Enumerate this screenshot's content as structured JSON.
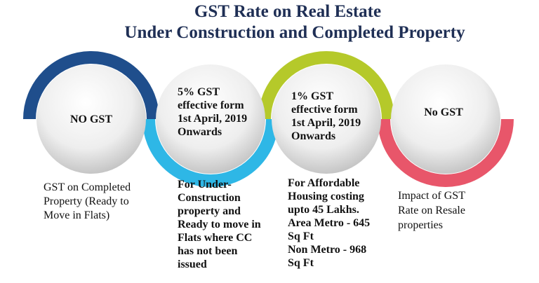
{
  "header": {
    "title": [
      "GST Rate on Real Estate",
      "Under Construction and Completed Property"
    ]
  },
  "items": [
    {
      "circle": [
        "NO GST"
      ],
      "description": [
        "GST on Completed",
        "Property (Ready to",
        "Move in Flats)"
      ]
    },
    {
      "circle": [
        "5% GST",
        "effective form",
        "1st April, 2019",
        "Onwards"
      ],
      "description": [
        "For Under-",
        "Construction",
        "property and",
        "Ready to move in",
        "Flats where CC",
        "has not been",
        "issued"
      ]
    },
    {
      "circle": [
        "1% GST",
        "effective form",
        "1st April, 2019",
        "Onwards"
      ],
      "description": [
        "For Affordable",
        "Housing costing",
        "upto 45 Lakhs.",
        "Area Metro - 645",
        "Sq Ft",
        "Non Metro - 968",
        "Sq Ft"
      ]
    },
    {
      "circle": [
        "No GST"
      ],
      "description": [
        "Impact of GST",
        "Rate on Resale",
        "properties"
      ]
    }
  ]
}
